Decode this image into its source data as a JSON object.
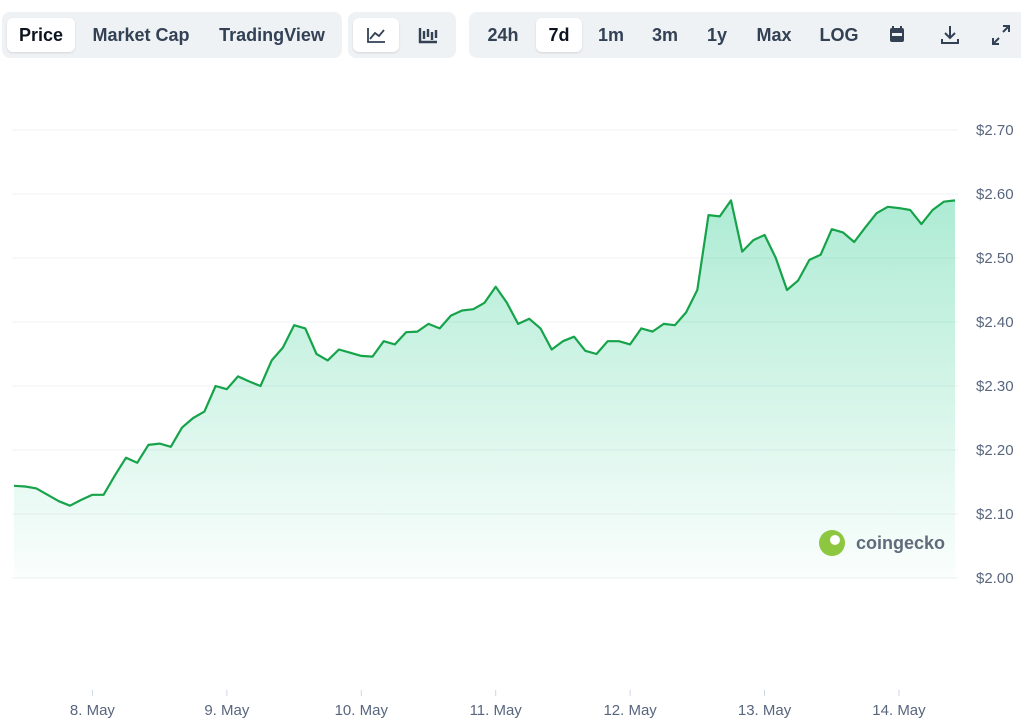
{
  "toolbar": {
    "views": [
      "Price",
      "Market Cap",
      "TradingView"
    ],
    "ranges": [
      "24h",
      "7d",
      "1m",
      "3m",
      "1y",
      "Max",
      "LOG"
    ]
  },
  "watermark": "coingecko",
  "chart_data": {
    "type": "line",
    "categories": [
      null,
      null,
      null,
      null,
      null,
      null,
      null,
      "8. May",
      null,
      null,
      null,
      null,
      null,
      null,
      null,
      null,
      null,
      null,
      null,
      "9. May",
      null,
      null,
      null,
      null,
      null,
      null,
      null,
      null,
      null,
      null,
      null,
      "10. May",
      null,
      null,
      null,
      null,
      null,
      null,
      null,
      null,
      null,
      null,
      null,
      "11. May",
      null,
      null,
      null,
      null,
      null,
      null,
      null,
      null,
      null,
      null,
      null,
      "12. May",
      null,
      null,
      null,
      null,
      null,
      null,
      null,
      null,
      null,
      null,
      null,
      "13. May",
      null,
      null,
      null,
      null,
      null,
      null,
      null,
      null,
      null,
      null,
      null,
      "14. May",
      null,
      null,
      null,
      null,
      null
    ],
    "values": [
      2.144,
      2.143,
      2.14,
      2.13,
      2.12,
      2.113,
      2.122,
      2.13,
      2.13,
      2.16,
      2.188,
      2.18,
      2.208,
      2.21,
      2.205,
      2.235,
      2.25,
      2.26,
      2.3,
      2.295,
      2.315,
      2.307,
      2.3,
      2.34,
      2.36,
      2.395,
      2.39,
      2.35,
      2.34,
      2.357,
      2.352,
      2.347,
      2.346,
      2.37,
      2.365,
      2.384,
      2.385,
      2.397,
      2.39,
      2.41,
      2.418,
      2.42,
      2.43,
      2.455,
      2.43,
      2.397,
      2.405,
      2.39,
      2.357,
      2.37,
      2.377,
      2.355,
      2.35,
      2.37,
      2.37,
      2.365,
      2.39,
      2.385,
      2.397,
      2.395,
      2.415,
      2.45,
      2.567,
      2.565,
      2.59,
      2.51,
      2.528,
      2.536,
      2.5,
      2.45,
      2.465,
      2.497,
      2.505,
      2.545,
      2.54,
      2.525,
      2.548,
      2.57,
      2.58,
      2.578,
      2.575,
      2.553,
      2.575,
      2.588,
      2.59
    ],
    "color": "#16a34a",
    "ylim": [
      2.0,
      2.7
    ],
    "yticks": [
      {
        "value": 2.0,
        "label": "$2.00"
      },
      {
        "value": 2.1,
        "label": "$2.10"
      },
      {
        "value": 2.2,
        "label": "$2.20"
      },
      {
        "value": 2.3,
        "label": "$2.30"
      },
      {
        "value": 2.4,
        "label": "$2.40"
      },
      {
        "value": 2.5,
        "label": "$2.50"
      },
      {
        "value": 2.6,
        "label": "$2.60"
      },
      {
        "value": 2.7,
        "label": "$2.70"
      }
    ],
    "grid": true
  }
}
